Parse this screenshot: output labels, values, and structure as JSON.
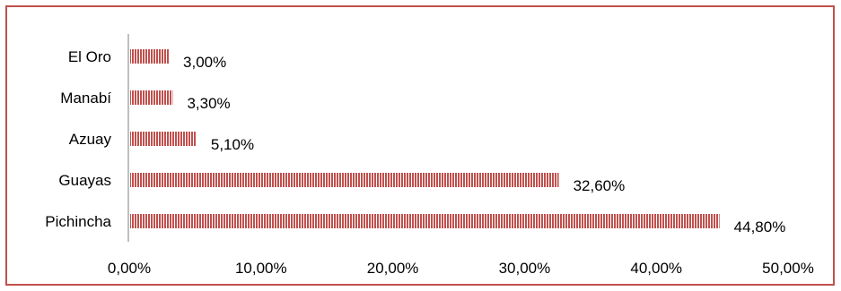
{
  "chart_data": {
    "type": "bar",
    "orientation": "horizontal",
    "title": "",
    "xlabel": "",
    "ylabel": "",
    "categories": [
      "El Oro",
      "Manabí",
      "Azuay",
      "Guayas",
      "Pichincha"
    ],
    "values": [
      3.0,
      3.3,
      5.1,
      32.6,
      44.8
    ],
    "value_labels": [
      "3,00%",
      "3,30%",
      "5,10%",
      "32,60%",
      "44,80%"
    ],
    "xlim": [
      0,
      50
    ],
    "x_ticks": [
      0,
      10,
      20,
      30,
      40,
      50
    ],
    "x_tick_labels": [
      "0,00%",
      "10,00%",
      "20,00%",
      "30,00%",
      "40,00%",
      "50,00%"
    ],
    "grid": false,
    "legend": "none",
    "bar_fill": "pattern-vertical-stripes",
    "bar_color": "#c0504d",
    "border_color": "#c0504d",
    "axis_color": "#bfbfbf"
  }
}
